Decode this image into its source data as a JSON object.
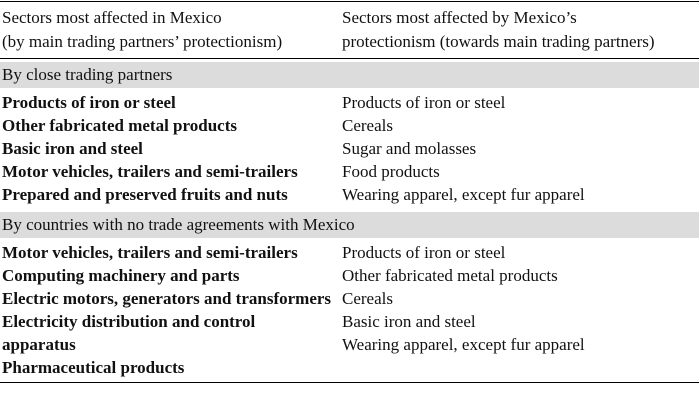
{
  "header": [
    [
      "Sectors most affected in Mexico",
      "(by main trading partners’ protectionism)"
    ],
    [
      "Sectors most affected by Mexico’s",
      "protectionism (towards main trading partners)"
    ]
  ],
  "sections": [
    {
      "title": "By close trading partners",
      "left": [
        "Products of iron or steel",
        "Other fabricated metal products",
        "Basic iron and steel",
        "Motor vehicles, trailers and semi-trailers",
        "Prepared and preserved fruits and nuts"
      ],
      "right": [
        "Products of iron or steel",
        "Cereals",
        "Sugar and molasses",
        "Food products",
        "Wearing apparel, except fur apparel"
      ]
    },
    {
      "title": "By countries with no trade agreements with Mexico",
      "left": [
        "Motor vehicles, trailers and semi-trailers",
        "Computing machinery and parts",
        "Electric motors, generators and transformers",
        "Electricity distribution and control apparatus",
        "Pharmaceutical products"
      ],
      "right": [
        "Products of iron or steel",
        "Other fabricated metal products",
        "Cereals",
        "Basic iron and steel",
        "Wearing apparel, except fur apparel"
      ]
    }
  ]
}
